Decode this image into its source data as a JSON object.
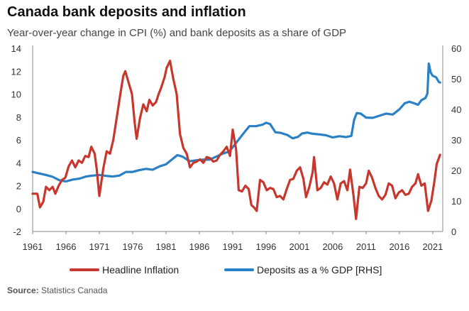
{
  "title": "Canada bank deposits and inflation",
  "subtitle": "Year-over-year  change in CPI (%) and bank deposits as a share of GDP",
  "source": {
    "label": "Source:",
    "text": "Statistics Canada"
  },
  "colors": {
    "inflation": "#c8372d",
    "deposits": "#2a80c5",
    "axis": "#888888",
    "text": "#333333"
  },
  "chart_data": {
    "type": "line",
    "title": "Canada bank deposits and inflation",
    "subtitle": "Year-over-year  change in CPI (%) and bank deposits as a share of GDP",
    "xlim": [
      1961,
      2022.5
    ],
    "x_ticks": [
      1961,
      1966,
      1971,
      1976,
      1981,
      1986,
      1991,
      1996,
      2001,
      2006,
      2011,
      2016,
      2021
    ],
    "y_left": {
      "lim": [
        -2,
        14
      ],
      "ticks": [
        -2,
        0,
        2,
        4,
        6,
        8,
        10,
        12,
        14
      ]
    },
    "y_right": {
      "lim": [
        0,
        60
      ],
      "ticks": [
        0,
        10,
        20,
        30,
        40,
        50,
        60
      ]
    },
    "grid": false,
    "legend_position": "bottom",
    "series": [
      {
        "name": "Headline Inflation",
        "axis": "left",
        "color": "#c8372d",
        "points": [
          [
            1961.0,
            1.3
          ],
          [
            1961.7,
            1.3
          ],
          [
            1962.1,
            0.1
          ],
          [
            1962.6,
            0.6
          ],
          [
            1963.0,
            1.9
          ],
          [
            1963.5,
            1.6
          ],
          [
            1964.0,
            1.9
          ],
          [
            1964.4,
            1.3
          ],
          [
            1964.9,
            2.0
          ],
          [
            1965.4,
            2.5
          ],
          [
            1965.9,
            2.7
          ],
          [
            1966.4,
            3.7
          ],
          [
            1966.9,
            4.2
          ],
          [
            1967.4,
            3.6
          ],
          [
            1967.9,
            4.2
          ],
          [
            1968.4,
            4.0
          ],
          [
            1968.9,
            4.6
          ],
          [
            1969.4,
            4.5
          ],
          [
            1969.8,
            5.4
          ],
          [
            1970.3,
            4.8
          ],
          [
            1970.6,
            3.5
          ],
          [
            1971.0,
            1.1
          ],
          [
            1971.6,
            3.5
          ],
          [
            1972.1,
            5.0
          ],
          [
            1972.6,
            4.8
          ],
          [
            1973.1,
            6.0
          ],
          [
            1973.6,
            7.9
          ],
          [
            1974.2,
            10.2
          ],
          [
            1974.6,
            11.6
          ],
          [
            1974.9,
            12.0
          ],
          [
            1975.4,
            11.0
          ],
          [
            1975.9,
            10.0
          ],
          [
            1976.3,
            7.5
          ],
          [
            1976.6,
            6.1
          ],
          [
            1977.1,
            7.9
          ],
          [
            1977.6,
            9.1
          ],
          [
            1978.1,
            8.5
          ],
          [
            1978.5,
            9.5
          ],
          [
            1979.0,
            9.0
          ],
          [
            1979.5,
            9.3
          ],
          [
            1979.9,
            10.0
          ],
          [
            1980.3,
            10.6
          ],
          [
            1980.8,
            11.5
          ],
          [
            1981.1,
            12.3
          ],
          [
            1981.6,
            12.9
          ],
          [
            1982.1,
            11.3
          ],
          [
            1982.6,
            10.0
          ],
          [
            1983.1,
            6.5
          ],
          [
            1983.6,
            5.3
          ],
          [
            1984.1,
            4.8
          ],
          [
            1984.6,
            3.6
          ],
          [
            1985.1,
            4.0
          ],
          [
            1985.6,
            4.1
          ],
          [
            1986.1,
            4.3
          ],
          [
            1986.6,
            4.0
          ],
          [
            1987.1,
            4.5
          ],
          [
            1987.6,
            4.4
          ],
          [
            1988.1,
            4.1
          ],
          [
            1988.6,
            4.2
          ],
          [
            1989.1,
            4.7
          ],
          [
            1989.6,
            5.0
          ],
          [
            1990.1,
            5.4
          ],
          [
            1990.6,
            4.6
          ],
          [
            1991.0,
            6.9
          ],
          [
            1991.5,
            5.2
          ],
          [
            1991.9,
            1.6
          ],
          [
            1992.4,
            1.5
          ],
          [
            1992.9,
            2.0
          ],
          [
            1993.4,
            1.7
          ],
          [
            1993.8,
            0.3
          ],
          [
            1994.2,
            0.1
          ],
          [
            1994.6,
            -0.2
          ],
          [
            1995.1,
            2.5
          ],
          [
            1995.6,
            2.3
          ],
          [
            1996.1,
            1.6
          ],
          [
            1996.6,
            1.8
          ],
          [
            1997.1,
            1.7
          ],
          [
            1997.6,
            1.0
          ],
          [
            1998.1,
            1.1
          ],
          [
            1998.6,
            0.8
          ],
          [
            1999.1,
            1.7
          ],
          [
            1999.6,
            2.5
          ],
          [
            2000.1,
            2.6
          ],
          [
            2000.6,
            3.3
          ],
          [
            2001.1,
            3.6
          ],
          [
            2001.6,
            2.6
          ],
          [
            2002.0,
            1.0
          ],
          [
            2002.5,
            1.9
          ],
          [
            2003.0,
            3.2
          ],
          [
            2003.2,
            4.5
          ],
          [
            2003.7,
            1.6
          ],
          [
            2004.2,
            1.8
          ],
          [
            2004.7,
            2.3
          ],
          [
            2005.2,
            2.1
          ],
          [
            2005.7,
            2.8
          ],
          [
            2006.2,
            2.2
          ],
          [
            2006.7,
            0.8
          ],
          [
            2007.2,
            2.2
          ],
          [
            2007.7,
            2.4
          ],
          [
            2008.2,
            1.6
          ],
          [
            2008.6,
            3.4
          ],
          [
            2009.1,
            1.2
          ],
          [
            2009.5,
            -0.9
          ],
          [
            2010.0,
            1.9
          ],
          [
            2010.5,
            1.8
          ],
          [
            2011.0,
            2.2
          ],
          [
            2011.4,
            3.3
          ],
          [
            2011.9,
            2.7
          ],
          [
            2012.4,
            1.8
          ],
          [
            2012.9,
            1.1
          ],
          [
            2013.4,
            0.8
          ],
          [
            2013.9,
            1.2
          ],
          [
            2014.4,
            2.2
          ],
          [
            2014.9,
            2.0
          ],
          [
            2015.4,
            0.9
          ],
          [
            2015.9,
            1.4
          ],
          [
            2016.4,
            1.6
          ],
          [
            2016.9,
            1.2
          ],
          [
            2017.4,
            1.3
          ],
          [
            2017.9,
            1.9
          ],
          [
            2018.4,
            2.2
          ],
          [
            2018.8,
            3.0
          ],
          [
            2019.3,
            2.0
          ],
          [
            2019.8,
            2.2
          ],
          [
            2020.3,
            -0.2
          ],
          [
            2020.8,
            0.7
          ],
          [
            2021.2,
            2.2
          ],
          [
            2021.6,
            3.9
          ],
          [
            2022.1,
            4.7
          ]
        ]
      },
      {
        "name": "Deposits as a % GDP [RHS]",
        "axis": "right",
        "color": "#2a80c5",
        "points": [
          [
            1961.0,
            19.5
          ],
          [
            1962.0,
            19.0
          ],
          [
            1963.0,
            18.5
          ],
          [
            1964.0,
            17.9
          ],
          [
            1965.0,
            16.8
          ],
          [
            1966.0,
            16.4
          ],
          [
            1967.0,
            17.0
          ],
          [
            1968.0,
            17.3
          ],
          [
            1969.0,
            18.0
          ],
          [
            1970.0,
            18.3
          ],
          [
            1971.0,
            18.5
          ],
          [
            1972.0,
            18.2
          ],
          [
            1973.0,
            18.0
          ],
          [
            1974.0,
            18.3
          ],
          [
            1975.0,
            19.5
          ],
          [
            1976.0,
            19.5
          ],
          [
            1977.0,
            20.1
          ],
          [
            1978.0,
            20.5
          ],
          [
            1979.0,
            20.2
          ],
          [
            1980.0,
            21.3
          ],
          [
            1981.0,
            22.0
          ],
          [
            1982.0,
            23.8
          ],
          [
            1982.7,
            25.0
          ],
          [
            1983.5,
            24.5
          ],
          [
            1984.5,
            23.0
          ],
          [
            1985.5,
            23.3
          ],
          [
            1986.5,
            23.5
          ],
          [
            1987.5,
            23.5
          ],
          [
            1988.5,
            24.5
          ],
          [
            1989.5,
            25.5
          ],
          [
            1990.5,
            26.2
          ],
          [
            1991.5,
            29.0
          ],
          [
            1992.5,
            31.8
          ],
          [
            1993.5,
            34.5
          ],
          [
            1994.5,
            34.5
          ],
          [
            1995.5,
            35.0
          ],
          [
            1996.0,
            35.6
          ],
          [
            1996.6,
            35.2
          ],
          [
            1997.4,
            32.5
          ],
          [
            1998.2,
            32.3
          ],
          [
            1999.2,
            31.6
          ],
          [
            2000.0,
            30.5
          ],
          [
            2000.8,
            31.0
          ],
          [
            2001.4,
            32.1
          ],
          [
            2002.2,
            32.4
          ],
          [
            2003.0,
            32.0
          ],
          [
            2004.0,
            31.8
          ],
          [
            2005.0,
            31.5
          ],
          [
            2006.0,
            30.8
          ],
          [
            2007.0,
            31.2
          ],
          [
            2008.0,
            30.9
          ],
          [
            2008.8,
            31.3
          ],
          [
            2009.2,
            36.5
          ],
          [
            2009.6,
            38.8
          ],
          [
            2010.2,
            38.6
          ],
          [
            2011.0,
            37.3
          ],
          [
            2012.0,
            37.2
          ],
          [
            2013.0,
            37.9
          ],
          [
            2014.0,
            38.6
          ],
          [
            2015.0,
            38.3
          ],
          [
            2016.0,
            40.0
          ],
          [
            2016.8,
            42.0
          ],
          [
            2017.5,
            42.5
          ],
          [
            2018.2,
            42.0
          ],
          [
            2018.8,
            41.5
          ],
          [
            2019.3,
            43.0
          ],
          [
            2019.9,
            43.7
          ],
          [
            2020.2,
            45.2
          ],
          [
            2020.4,
            55.0
          ],
          [
            2020.7,
            52.0
          ],
          [
            2021.0,
            51.0
          ],
          [
            2021.5,
            50.5
          ],
          [
            2021.9,
            49.0
          ],
          [
            2022.1,
            48.8
          ]
        ]
      }
    ]
  }
}
